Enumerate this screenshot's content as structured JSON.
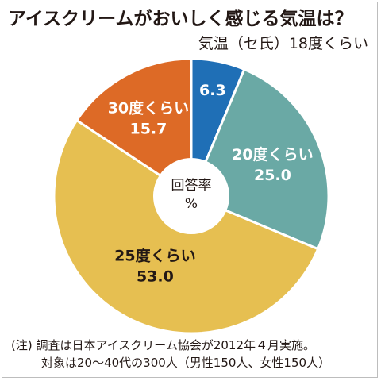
{
  "chart_data": {
    "type": "pie",
    "title": "アイスクリームがおいしく感じる気温は？",
    "subtitle": "気温（セ氏）18度くらい",
    "center_label": [
      "回答率",
      "%"
    ],
    "slices": [
      {
        "name": "",
        "value": 6.3,
        "color": "#1f6fb6",
        "label_color": "#ffffff"
      },
      {
        "name": "20度くらい",
        "value": 25.0,
        "color": "#6aa9a5",
        "label_color": "#ffffff"
      },
      {
        "name": "25度くらい",
        "value": 53.0,
        "color": "#e6bf51",
        "label_color": "#231815"
      },
      {
        "name": "30度くらい",
        "value": 15.7,
        "color": "#dd6a26",
        "label_color": "#ffffff"
      }
    ]
  },
  "note": {
    "line1": "(注) 調査は日本アイスクリーム協会が2012年４月実施。",
    "line2": "対象は20～40代の300人（男性150人、女性150人）"
  }
}
